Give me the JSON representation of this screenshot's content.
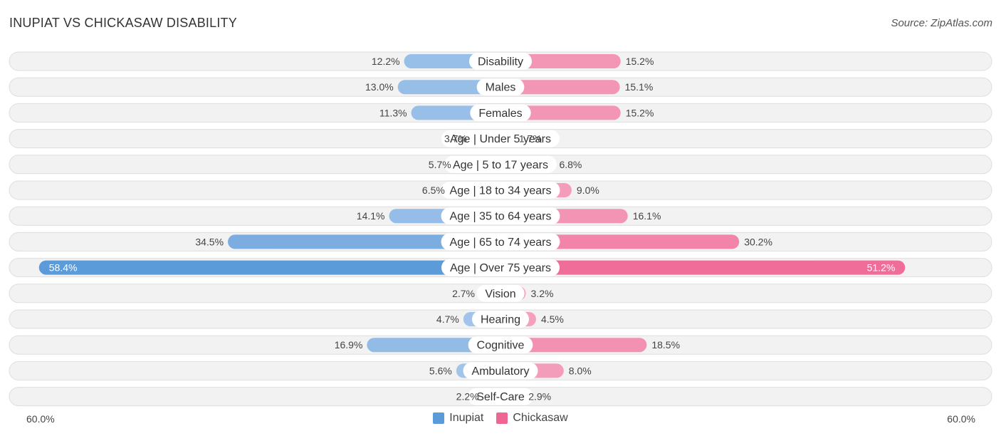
{
  "header": {
    "title": "INUPIAT VS CHICKASAW DISABILITY",
    "source": "Source: ZipAtlas.com"
  },
  "colors": {
    "inupiat": "#5b9bd9",
    "inupiat_light": "#a8c8eb",
    "chickasaw": "#ef6593",
    "chickasaw_light": "#f5a6c0"
  },
  "chart_data": {
    "type": "bar",
    "orientation": "horizontal-diverging",
    "title": "INUPIAT VS CHICKASAW DISABILITY",
    "axis": {
      "min_label": "60.0%",
      "max_label": "60.0%",
      "range": [
        0,
        60
      ]
    },
    "categories": [
      "Disability",
      "Males",
      "Females",
      "Age | Under 5 years",
      "Age | 5 to 17 years",
      "Age | 18 to 34 years",
      "Age | 35 to 64 years",
      "Age | 65 to 74 years",
      "Age | Over 75 years",
      "Vision",
      "Hearing",
      "Cognitive",
      "Ambulatory",
      "Self-Care"
    ],
    "series": [
      {
        "name": "Inupiat",
        "values": [
          12.2,
          13.0,
          11.3,
          3.7,
          5.7,
          6.5,
          14.1,
          34.5,
          58.4,
          2.7,
          4.7,
          16.9,
          5.6,
          2.2
        ],
        "labels": [
          "12.2%",
          "13.0%",
          "11.3%",
          "3.7%",
          "5.7%",
          "6.5%",
          "14.1%",
          "34.5%",
          "58.4%",
          "2.7%",
          "4.7%",
          "16.9%",
          "5.6%",
          "2.2%"
        ]
      },
      {
        "name": "Chickasaw",
        "values": [
          15.2,
          15.1,
          15.2,
          1.7,
          6.8,
          9.0,
          16.1,
          30.2,
          51.2,
          3.2,
          4.5,
          18.5,
          8.0,
          2.9
        ],
        "labels": [
          "15.2%",
          "15.1%",
          "15.2%",
          "1.7%",
          "6.8%",
          "9.0%",
          "16.1%",
          "30.2%",
          "51.2%",
          "3.2%",
          "4.5%",
          "18.5%",
          "8.0%",
          "2.9%"
        ]
      }
    ],
    "legend": [
      "Inupiat",
      "Chickasaw"
    ]
  }
}
